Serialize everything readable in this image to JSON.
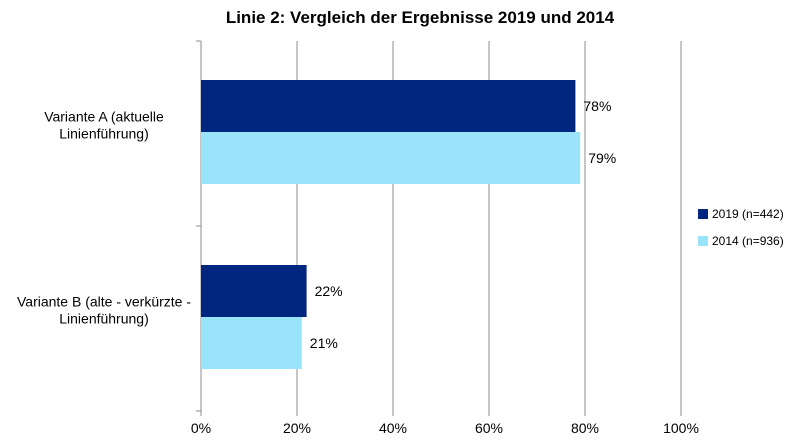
{
  "chart_data": {
    "type": "bar",
    "orientation": "horizontal",
    "title": "Linie 2: Vergleich der Ergebnisse 2019 und 2014",
    "categories": [
      [
        "Variante A (aktuelle",
        "Linienführung)"
      ],
      [
        "Variante B (alte - verkürzte -",
        "Linienführung)"
      ]
    ],
    "series": [
      {
        "name": "2019 (n=442)",
        "color": "#00267f",
        "values": [
          78,
          22
        ],
        "labels": [
          "78%",
          "22%"
        ]
      },
      {
        "name": "2014 (n=936)",
        "color": "#99e3fb",
        "values": [
          79,
          21
        ],
        "labels": [
          "79%",
          "21%"
        ]
      }
    ],
    "xlim": [
      0,
      100
    ],
    "xticks": [
      0,
      20,
      40,
      60,
      80,
      100
    ],
    "xtick_labels": [
      "0%",
      "20%",
      "40%",
      "60%",
      "80%",
      "100%"
    ],
    "grid": true,
    "legend_position": "right"
  }
}
